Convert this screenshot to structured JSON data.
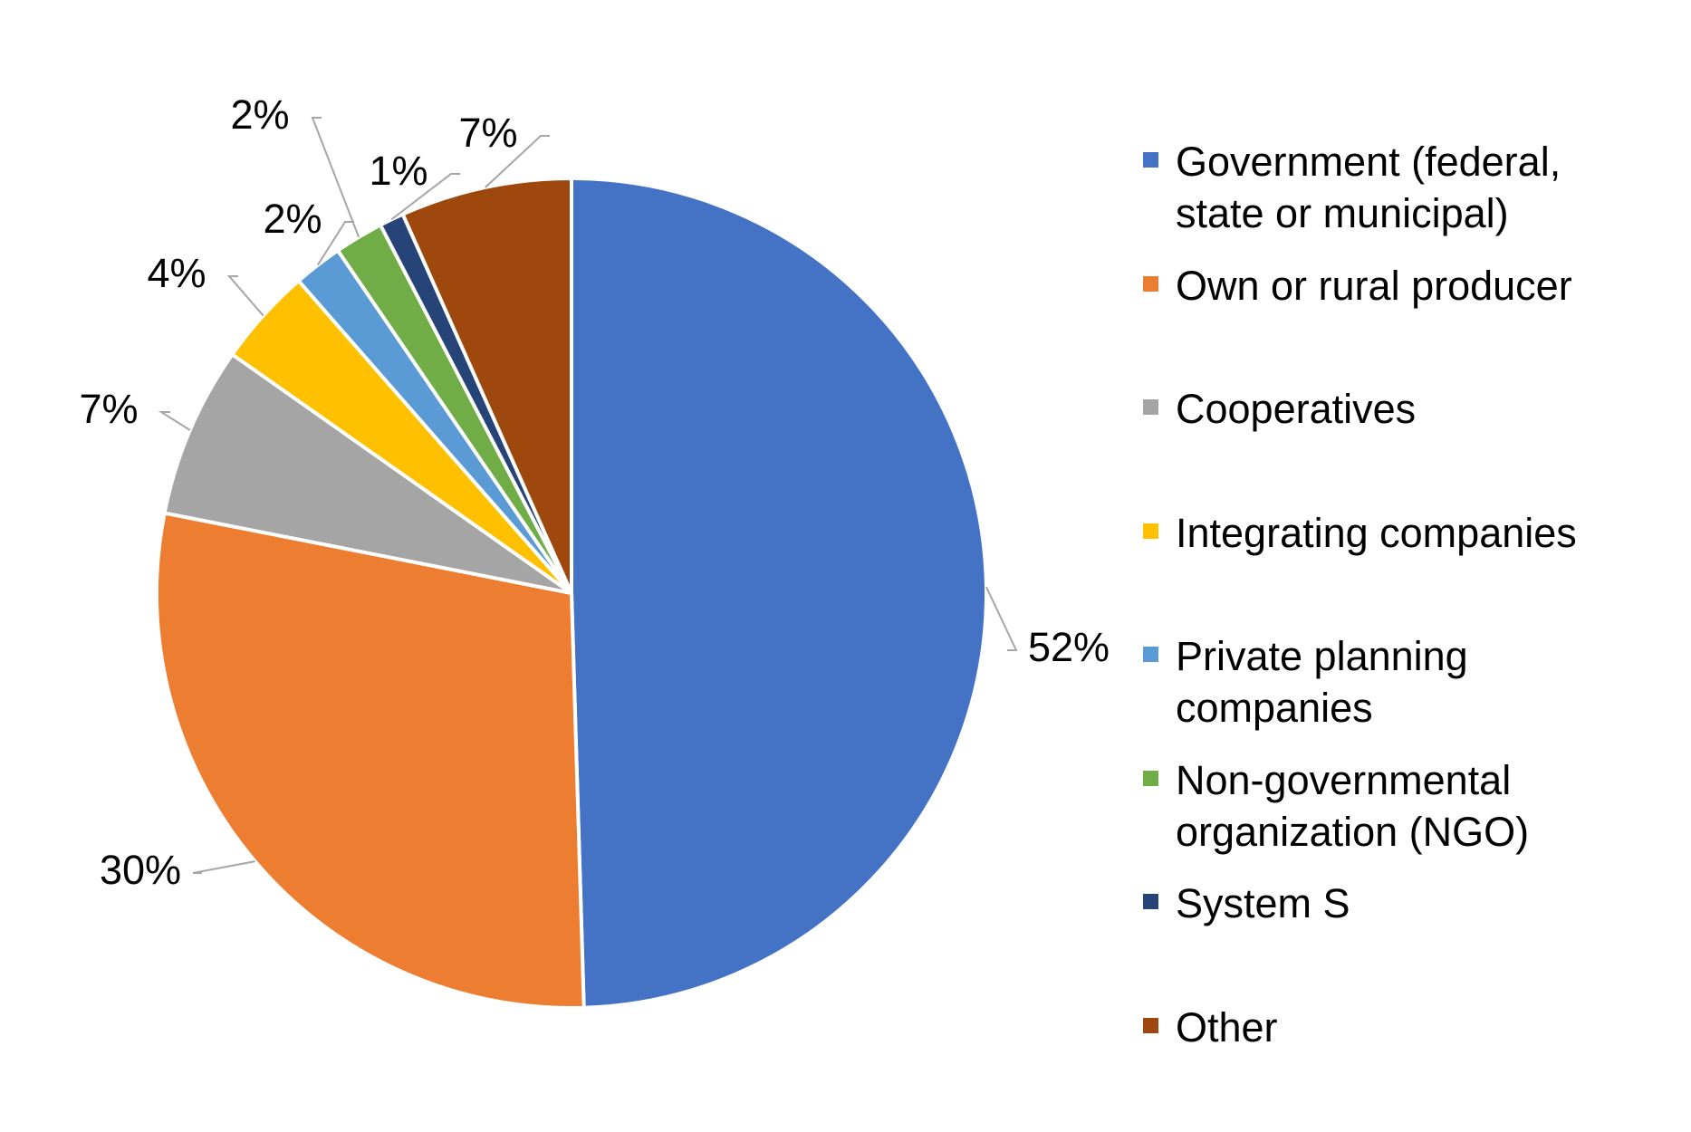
{
  "chart_data": {
    "type": "pie",
    "categories": [
      "Government (federal, state or municipal)",
      "Own or rural producer",
      "Cooperatives",
      "Integrating companies",
      "Private planning companies",
      "Non-governmental organization (NGO)",
      "System S",
      "Other"
    ],
    "values": [
      52,
      30,
      7,
      4,
      2,
      2,
      1,
      7
    ],
    "value_labels": [
      "52%",
      "30%",
      "7%",
      "4%",
      "2%",
      "2%",
      "1%",
      "7%"
    ],
    "colors": [
      "#4472c4",
      "#ed7d31",
      "#a5a5a5",
      "#ffc000",
      "#5b9bd5",
      "#70ad47",
      "#264478",
      "#9e480e"
    ],
    "legend": "right"
  }
}
